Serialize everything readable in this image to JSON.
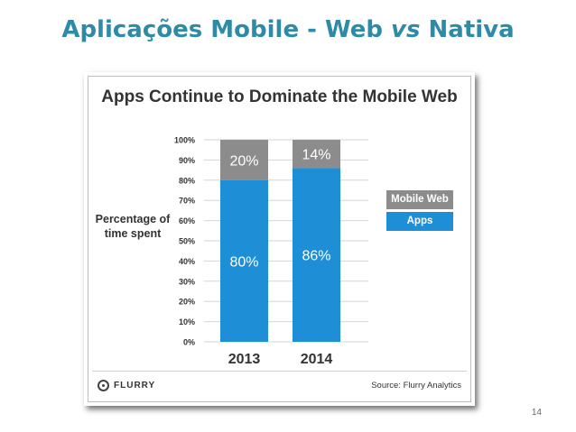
{
  "slide": {
    "title_part1": "Aplicações Mobile - Web ",
    "title_vs": "vs",
    "title_part2": " Nativa",
    "page_number": "14"
  },
  "chart_data": {
    "type": "bar",
    "stacked": true,
    "title": "Apps Continue to Dominate the Mobile Web",
    "ylabel": "Percentage of time spent",
    "xlabel": "",
    "categories": [
      "2013",
      "2014"
    ],
    "series": [
      {
        "name": "Apps",
        "values": [
          80,
          86
        ],
        "labels": [
          "80%",
          "86%"
        ],
        "color": "#1e8fd6"
      },
      {
        "name": "Mobile Web",
        "values": [
          20,
          14
        ],
        "labels": [
          "20%",
          "14%"
        ],
        "color": "#8c8c8c"
      }
    ],
    "yticks": [
      "0%",
      "10%",
      "20%",
      "30%",
      "40%",
      "50%",
      "60%",
      "70%",
      "80%",
      "90%",
      "100%"
    ],
    "ylim": [
      0,
      100
    ],
    "legend": [
      "Mobile Web",
      "Apps"
    ],
    "legend_position": "right",
    "source": "Source: Flurry Analytics",
    "brand": "FLURRY"
  },
  "colors": {
    "title": "#2e8ba8",
    "apps": "#1e8fd6",
    "mobile_web": "#8c8c8c"
  }
}
